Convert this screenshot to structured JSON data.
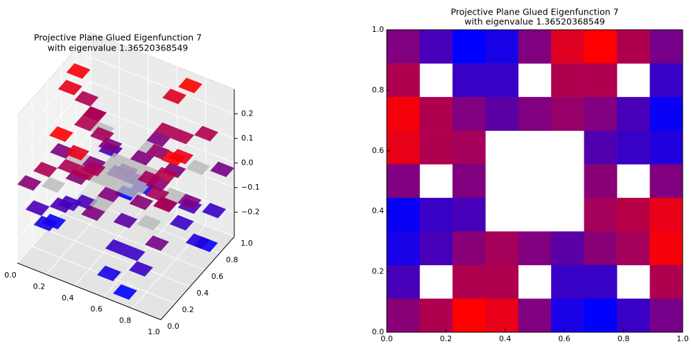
{
  "chart_data": [
    {
      "type": "surface3d",
      "title": [
        "Projective Plane Glued Eigenfunction 7",
        "with eigenvalue 1.36520368549"
      ],
      "z": [
        [
          0.0,
          -0.12,
          -0.27,
          -0.22,
          0.0,
          0.2,
          0.27,
          0.1,
          -0.02
        ],
        [
          0.1,
          null,
          -0.15,
          -0.15,
          null,
          0.1,
          0.1,
          null,
          -0.15
        ],
        [
          0.25,
          0.1,
          0.0,
          -0.08,
          0.0,
          0.05,
          0.0,
          -0.12,
          -0.25
        ],
        [
          0.22,
          0.1,
          0.08,
          null,
          null,
          null,
          -0.1,
          -0.15,
          -0.2
        ],
        [
          0.0,
          null,
          0.0,
          null,
          null,
          null,
          0.02,
          null,
          0.0
        ],
        [
          -0.25,
          -0.15,
          -0.12,
          null,
          null,
          null,
          0.08,
          0.12,
          0.22
        ],
        [
          -0.22,
          -0.12,
          0.02,
          0.08,
          0.0,
          -0.08,
          0.02,
          0.08,
          0.25
        ],
        [
          -0.12,
          null,
          0.1,
          0.1,
          null,
          -0.15,
          -0.15,
          null,
          0.1
        ],
        [
          0.02,
          0.1,
          0.27,
          0.22,
          0.0,
          -0.22,
          -0.27,
          -0.15,
          -0.02
        ]
      ],
      "cmap": [
        "#0000ff",
        "#ff0000"
      ],
      "clim": [
        -0.27,
        0.27
      ],
      "hole_color": "#b8b8b8",
      "xlim": [
        0,
        1
      ],
      "ylim": [
        0,
        1
      ],
      "zlim": [
        -0.3,
        0.3
      ],
      "xticks": [
        {
          "value": 0,
          "label": "0.0"
        },
        0.2,
        0.4,
        0.6,
        0.8,
        {
          "value": 1,
          "label": "1.0"
        }
      ],
      "yticks": [
        {
          "value": 0,
          "label": "0.0"
        },
        0.2,
        0.4,
        0.6,
        0.8,
        {
          "value": 1,
          "label": "1.0"
        }
      ],
      "zticks": [
        {
          "value": -0.2,
          "label": "−0.2"
        },
        {
          "value": -0.1,
          "label": "−0.1"
        },
        {
          "value": 0,
          "label": "0.0"
        },
        0.1,
        0.2
      ],
      "grid": true
    },
    {
      "type": "heatmap",
      "title": [
        "Projective Plane Glued Eigenfunction 7",
        "with eigenvalue 1.36520368549"
      ],
      "z": [
        [
          0.0,
          -0.12,
          -0.27,
          -0.22,
          0.0,
          0.2,
          0.27,
          0.1,
          -0.02
        ],
        [
          0.1,
          null,
          -0.15,
          -0.15,
          null,
          0.1,
          0.1,
          null,
          -0.15
        ],
        [
          0.25,
          0.1,
          0.0,
          -0.08,
          0.0,
          0.05,
          0.0,
          -0.12,
          -0.25
        ],
        [
          0.22,
          0.1,
          0.08,
          null,
          null,
          null,
          -0.1,
          -0.15,
          -0.2
        ],
        [
          0.0,
          null,
          0.0,
          null,
          null,
          null,
          0.02,
          null,
          0.0
        ],
        [
          -0.25,
          -0.15,
          -0.12,
          null,
          null,
          null,
          0.08,
          0.12,
          0.22
        ],
        [
          -0.22,
          -0.12,
          0.02,
          0.08,
          0.0,
          -0.08,
          0.02,
          0.08,
          0.25
        ],
        [
          -0.12,
          null,
          0.1,
          0.1,
          null,
          -0.15,
          -0.15,
          null,
          0.1
        ],
        [
          0.02,
          0.1,
          0.27,
          0.22,
          0.0,
          -0.22,
          -0.27,
          -0.15,
          -0.02
        ]
      ],
      "cmap": [
        "#0000ff",
        "#ff0000"
      ],
      "clim": [
        -0.27,
        0.27
      ],
      "xlim": [
        0,
        1
      ],
      "ylim": [
        0,
        1
      ],
      "xticks": [
        {
          "value": 0,
          "label": "0.0"
        },
        0.2,
        0.4,
        0.6,
        0.8,
        {
          "value": 1,
          "label": "1.0"
        }
      ],
      "yticks": [
        {
          "value": 0,
          "label": "0.0"
        },
        0.2,
        0.4,
        0.6,
        0.8,
        {
          "value": 1,
          "label": "1.0"
        }
      ]
    }
  ]
}
